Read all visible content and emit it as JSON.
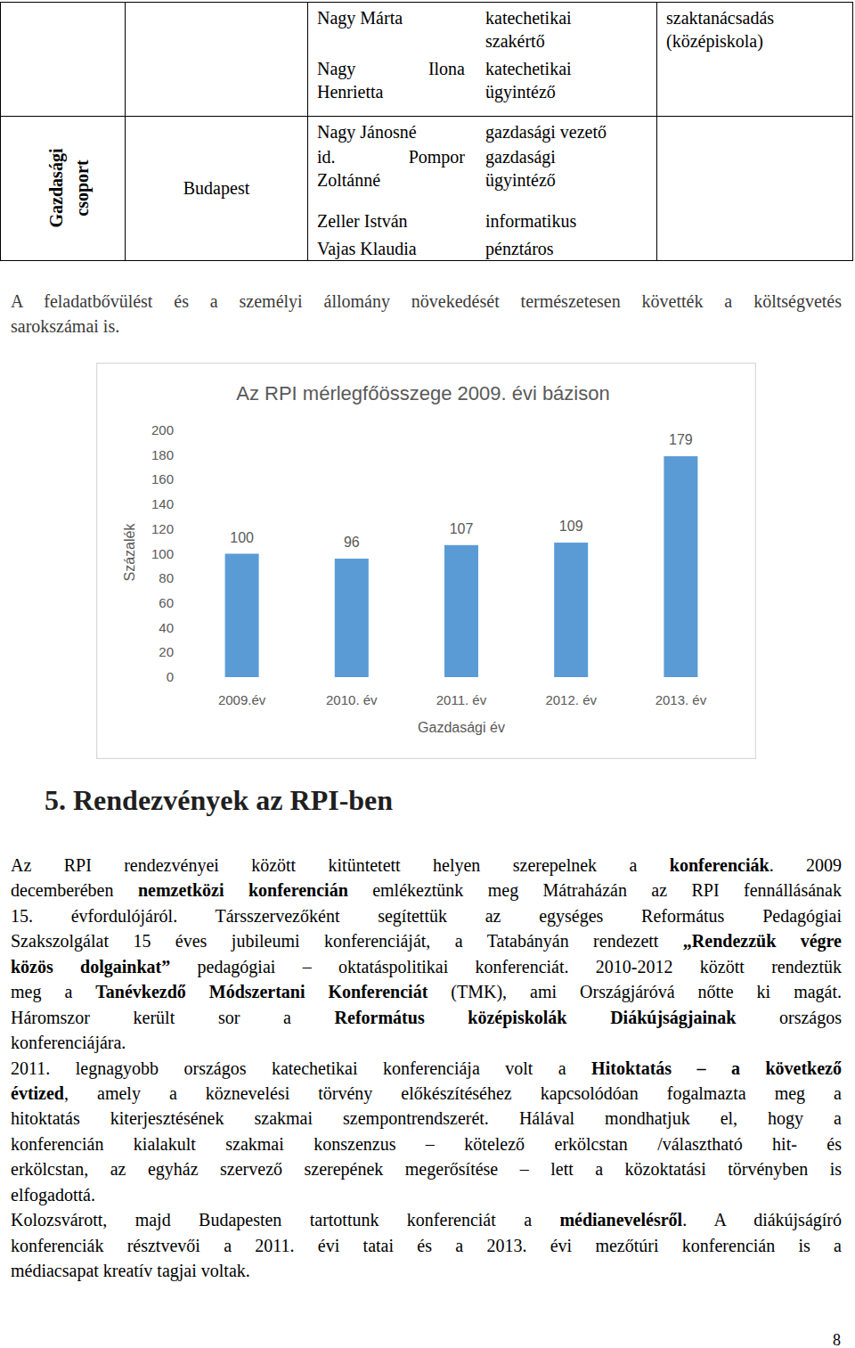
{
  "table": {
    "rows": [
      {
        "people": [
          {
            "name": [
              "Nagy Márta"
            ],
            "role": [
              "katechetikai",
              "szakértő"
            ]
          },
          {
            "name": [
              "Nagy Ilona",
              "Henrietta"
            ],
            "role": [
              "katechetikai",
              "ügyintéző"
            ]
          }
        ],
        "note": [
          "szaktanácsadás",
          "(középiskola)"
        ]
      },
      {
        "group": [
          "Gazdasági",
          "csoport"
        ],
        "location": "Budapest",
        "people": [
          {
            "name": [
              "Nagy Jánosné"
            ],
            "role": [
              "gazdasági vezető"
            ]
          },
          {
            "name": [
              "id. Pompor",
              "Zoltánné"
            ],
            "role": [
              "gazdasági",
              "ügyintéző"
            ]
          },
          {
            "name": [
              "Zeller István"
            ],
            "role": [
              "informatikus"
            ]
          },
          {
            "name": [
              "Vajas Klaudia"
            ],
            "role": [
              "pénztáros"
            ]
          }
        ]
      }
    ]
  },
  "intro": {
    "lines": [
      [
        {
          "text": "A feladatbővülést és a személyi állomány növekedését természetesen követték a költségvetés"
        }
      ],
      [
        {
          "text": "sarokszámai is."
        }
      ]
    ]
  },
  "chart_data": {
    "type": "bar",
    "title": "Az RPI mérlegfőösszege 2009. évi bázison",
    "xlabel": "Gazdasági év",
    "ylabel": "Százalék",
    "categories": [
      "2009.év",
      "2010. év",
      "2011. év",
      "2012. év",
      "2013. év"
    ],
    "values": [
      100,
      96,
      107,
      109,
      179
    ],
    "color": "#5b9bd5",
    "ylim": [
      0,
      200
    ],
    "yticks": [
      0,
      20,
      40,
      60,
      80,
      100,
      120,
      140,
      160,
      180,
      200
    ],
    "grid": false,
    "data_labels": true
  },
  "section": {
    "heading": "5. Rendezvények az RPI-ben",
    "paragraphs": [
      {
        "lines": [
          [
            {
              "text": "Az RPI rendezvényei között kitüntetett helyen szerepelnek a "
            },
            {
              "text": "konferenciák",
              "bold": true
            },
            {
              "text": ". 2009"
            }
          ],
          [
            {
              "text": "decemberében "
            },
            {
              "text": "nemzetközi konferencián",
              "bold": true
            },
            {
              "text": " emlékeztünk meg Mátraházán az RPI fennállásának"
            }
          ],
          [
            {
              "text": "15. évfordulójáról. Társszervezőként segítettük az egységes Református Pedagógiai"
            }
          ],
          [
            {
              "text": "Szakszolgálat 15 éves jubileumi konferenciáját, a Tatabányán rendezett "
            },
            {
              "text": "„Rendezzük végre",
              "bold": true
            }
          ],
          [
            {
              "text": "közös dolgainkat”",
              "bold": true
            },
            {
              "text": " pedagógiai – oktatáspolitikai konferenciát. 2010-2012 között rendeztük"
            }
          ],
          [
            {
              "text": "meg a "
            },
            {
              "text": "Tanévkezdő Módszertani Konferenciát",
              "bold": true
            },
            {
              "text": " (TMK), ami Országjáróvá nőtte ki magát."
            }
          ],
          [
            {
              "text": "Háromszor került sor a "
            },
            {
              "text": "Református középiskolák Diákújságjainak",
              "bold": true
            },
            {
              "text": " országos"
            }
          ],
          [
            {
              "text": "konferenciájára."
            }
          ]
        ]
      },
      {
        "lines": [
          [
            {
              "text": "2011. legnagyobb országos katechetikai konferenciája volt a "
            },
            {
              "text": "Hitoktatás – a következő",
              "bold": true
            }
          ],
          [
            {
              "text": "évtized",
              "bold": true
            },
            {
              "text": ", amely a köznevelési törvény előkészítéséhez kapcsolódóan fogalmazta meg a"
            }
          ],
          [
            {
              "text": "hitoktatás kiterjesztésének szakmai szempontrendszerét. Hálával mondhatjuk el, hogy a"
            }
          ],
          [
            {
              "text": "konferencián kialakult szakmai konszenzus – kötelező erkölcstan /választható hit- és"
            }
          ],
          [
            {
              "text": "erkölcstan, az egyház szervező szerepének megerősítése – lett a közoktatási törvényben is"
            }
          ],
          [
            {
              "text": "elfogadottá."
            }
          ]
        ]
      },
      {
        "lines": [
          [
            {
              "text": "Kolozsvárott, majd Budapesten tartottunk konferenciát a "
            },
            {
              "text": "médianevelésről",
              "bold": true
            },
            {
              "text": ". A diákújságíró"
            }
          ],
          [
            {
              "text": "konferenciák résztvevői a 2011. évi tatai és a 2013. évi mezőtúri konferencián is a"
            }
          ],
          [
            {
              "text": "médiacsapat kreatív tagjai voltak."
            }
          ]
        ]
      }
    ]
  },
  "page_number": 8
}
